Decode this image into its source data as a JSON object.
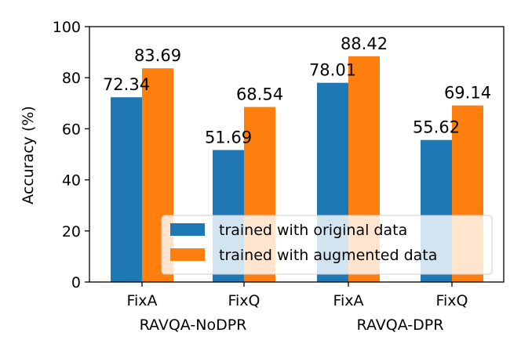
{
  "chart_data": {
    "type": "bar",
    "title": "",
    "xlabel": "",
    "ylabel": "Accuracy (%)",
    "ylim": [
      0,
      100
    ],
    "yticks": [
      0,
      20,
      40,
      60,
      80,
      100
    ],
    "categories": [
      "FixA",
      "FixQ",
      "FixA",
      "FixQ"
    ],
    "groups": [
      {
        "label": "RAVQA-NoDPR",
        "categories": [
          0,
          1
        ]
      },
      {
        "label": "RAVQA-DPR",
        "categories": [
          2,
          3
        ]
      }
    ],
    "series": [
      {
        "name": "trained with original data",
        "color": "#1f77b4",
        "values": [
          72.34,
          51.69,
          78.01,
          55.62
        ],
        "labels": [
          "72.34",
          "51.69",
          "78.01",
          "55.62"
        ]
      },
      {
        "name": "trained with augmented data",
        "color": "#ff7f0e",
        "values": [
          83.69,
          68.54,
          88.42,
          69.14
        ],
        "labels": [
          "83.69",
          "68.54",
          "88.42",
          "69.14"
        ]
      }
    ],
    "grid": false,
    "legend": "lower-right"
  }
}
